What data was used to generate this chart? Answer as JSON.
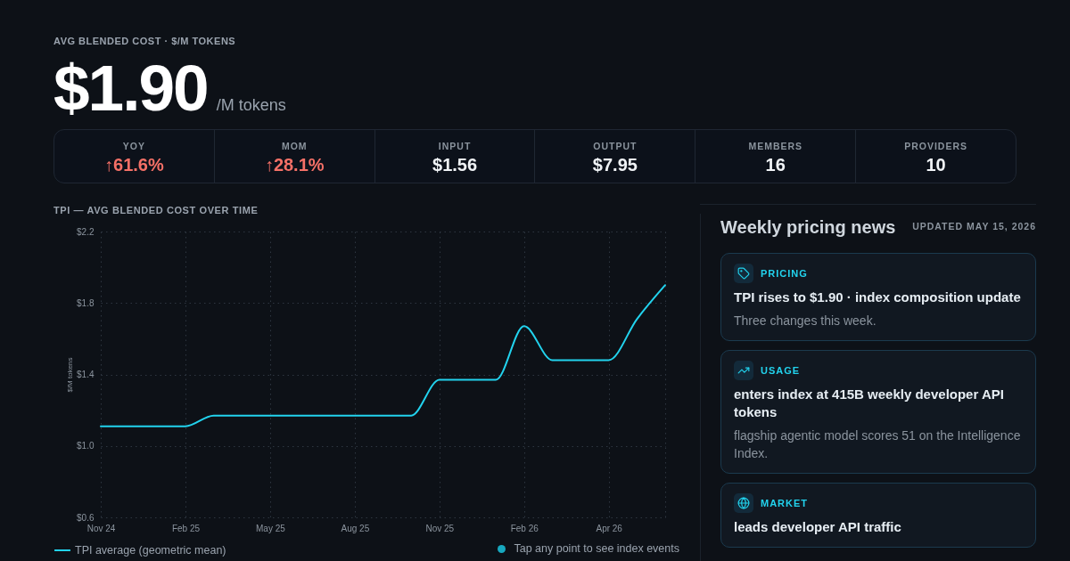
{
  "chart_data": [
    {
      "type": "other",
      "title": "AVG BLENDED COST · $/M TOKENS",
      "annotations": [
        "$1.90",
        "/M tokens"
      ],
      "categories": [
        "YOY",
        "MOM",
        "INPUT",
        "OUTPUT",
        "MEMBERS",
        "PROVIDERS"
      ],
      "value_labels": [
        "↑61.6%",
        "↑28.1%",
        "$1.56",
        "$7.95",
        "16",
        "10"
      ]
    },
    {
      "type": "line",
      "title": "TPI — AVG BLENDED COST OVER TIME",
      "ylabel": "$/M tokens",
      "categories": [
        "Nov 24",
        null,
        null,
        "Feb 25",
        null,
        null,
        "May 25",
        null,
        null,
        "Aug 25",
        null,
        null,
        "Nov 25",
        null,
        null,
        "Feb 26",
        null,
        null,
        "Apr 26",
        null,
        null
      ],
      "series": [
        {
          "name": "TPI average (geometric mean)",
          "color": "#22d3ee",
          "values": [
            1.11,
            1.11,
            1.11,
            1.11,
            1.17,
            1.17,
            1.17,
            1.17,
            1.17,
            1.17,
            1.17,
            1.17,
            1.37,
            1.37,
            1.37,
            1.67,
            1.48,
            1.48,
            1.48,
            1.71,
            1.9
          ]
        }
      ],
      "ylim": [
        0.6,
        2.2
      ],
      "yticks": [
        {
          "value": 0.6,
          "label": "$0.6"
        },
        {
          "value": 1,
          "label": "$1.0"
        },
        {
          "value": 1.4,
          "label": "$1.4"
        },
        {
          "value": 1.8,
          "label": "$1.8"
        },
        {
          "value": 2.2,
          "label": "$2.2"
        }
      ],
      "grid": true,
      "legend": "bottom left",
      "annotations": [
        "Tap any point to see index events"
      ]
    },
    {
      "type": "other",
      "title": "Weekly pricing news",
      "subtitle": "UPDATED MAY 15, 2026",
      "categories": [
        "PRICING",
        "USAGE",
        "MARKET"
      ],
      "annotations": [
        "TPI rises to $1.90 · index composition update",
        "Three changes this week.",
        "enters index at 415B weekly developer API tokens",
        "flagship agentic model scores 51 on the Intelligence Index.",
        "leads developer API traffic"
      ]
    }
  ]
}
